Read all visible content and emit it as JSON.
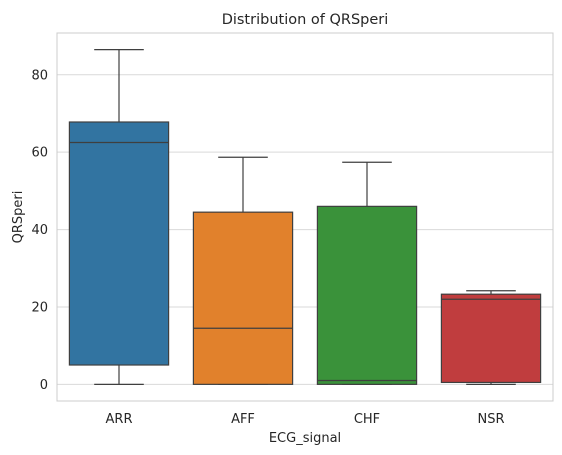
{
  "chart_data": {
    "type": "box",
    "title": "Distribution of QRSperi",
    "xlabel": "ECG_signal",
    "ylabel": "QRSperi",
    "categories": [
      "ARR",
      "AFF",
      "CHF",
      "NSR"
    ],
    "colors": [
      "#3274a1",
      "#e1812c",
      "#3a923a",
      "#c03d3e"
    ],
    "boxes": [
      {
        "category": "ARR",
        "whisker_low": 0,
        "q1": 5,
        "median": 62.5,
        "q3": 67.8,
        "whisker_high": 86.5
      },
      {
        "category": "AFF",
        "whisker_low": 0,
        "q1": 0,
        "median": 14.5,
        "q3": 44.5,
        "whisker_high": 58.7
      },
      {
        "category": "CHF",
        "whisker_low": 0,
        "q1": 0,
        "median": 1.0,
        "q3": 46.0,
        "whisker_high": 57.4
      },
      {
        "category": "NSR",
        "whisker_low": 0,
        "q1": 0.5,
        "median": 22.0,
        "q3": 23.3,
        "whisker_high": 24.2
      }
    ],
    "yticks": [
      0,
      20,
      40,
      60,
      80
    ],
    "ylim": [
      -4.3,
      90.8
    ],
    "grid": "horizontal",
    "legend": "none"
  }
}
